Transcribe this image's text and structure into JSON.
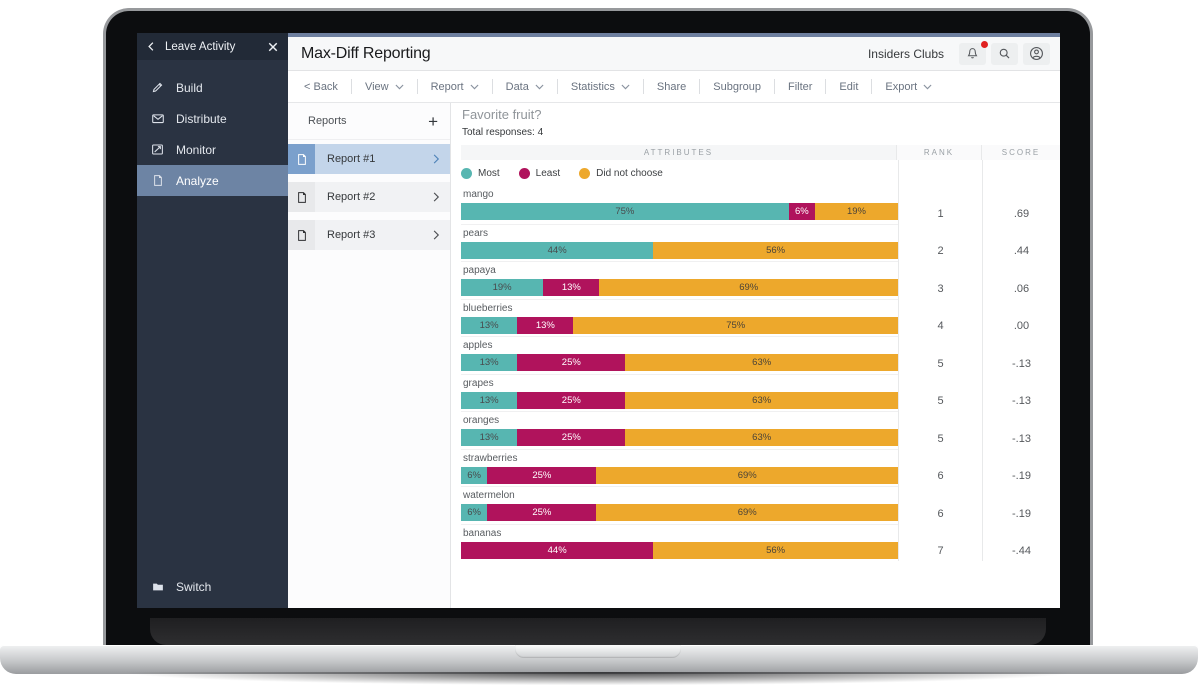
{
  "window": {
    "title": "Max-Diff Reporting",
    "account_label": "Insiders Clubs",
    "icon_buttons": [
      {
        "name": "bell-icon",
        "badge": true
      },
      {
        "name": "search-icon",
        "badge": false
      },
      {
        "name": "account-icon",
        "badge": false
      }
    ]
  },
  "sidebar": {
    "header": {
      "back_icon": "back-icon",
      "label": "Leave Activity",
      "close_icon": "close-icon"
    },
    "items": [
      {
        "label": "Build",
        "icon": "pencil-icon",
        "active": false
      },
      {
        "label": "Distribute",
        "icon": "envelope-icon",
        "active": false
      },
      {
        "label": "Monitor",
        "icon": "monitor-chart-icon",
        "active": false
      },
      {
        "label": "Analyze",
        "icon": "document-icon",
        "active": true
      }
    ],
    "footer": {
      "label": "Switch",
      "icon": "folder-icon"
    }
  },
  "toolbar": {
    "items": [
      {
        "label": "< Back",
        "dropdown": false
      },
      {
        "label": "View",
        "dropdown": true
      },
      {
        "label": "Report",
        "dropdown": true
      },
      {
        "label": "Data",
        "dropdown": true
      },
      {
        "label": "Statistics",
        "dropdown": true
      },
      {
        "label": "Share",
        "dropdown": false
      },
      {
        "label": "Subgroup",
        "dropdown": false
      },
      {
        "label": "Filter",
        "dropdown": false
      },
      {
        "label": "Edit",
        "dropdown": false
      },
      {
        "label": "Export",
        "dropdown": true
      }
    ]
  },
  "reports_panel": {
    "title": "Reports",
    "add_label": "+",
    "items": [
      {
        "label": "Report #1",
        "selected": true
      },
      {
        "label": "Report #2",
        "selected": false
      },
      {
        "label": "Report #3",
        "selected": false
      }
    ]
  },
  "report_header": {
    "question": "Favorite fruit?",
    "total_label": "Total responses: 4",
    "columns": {
      "attributes": "ATTRIBUTES",
      "rank": "RANK",
      "score": "SCORE"
    }
  },
  "chart_data": {
    "type": "bar",
    "stacked": true,
    "orientation": "horizontal",
    "title": "Favorite fruit?",
    "total_responses": 4,
    "value_format": "percent",
    "legend_position": "top",
    "legend": [
      {
        "name": "Most",
        "color": "#57b6b1"
      },
      {
        "name": "Least",
        "color": "#b0135c"
      },
      {
        "name": "Did not choose",
        "color": "#eda82c"
      }
    ],
    "categories": [
      "mango",
      "pears",
      "papaya",
      "blueberries",
      "apples",
      "grapes",
      "oranges",
      "strawberries",
      "watermelon",
      "bananas"
    ],
    "series": [
      {
        "name": "Most",
        "color": "#57b6b1",
        "text_color": "#494b4d",
        "values": [
          75,
          44,
          19,
          13,
          13,
          13,
          13,
          6,
          6,
          0
        ]
      },
      {
        "name": "Least",
        "color": "#b0135c",
        "text_color": "#ffffff",
        "values": [
          6,
          0,
          13,
          13,
          25,
          25,
          25,
          25,
          25,
          44
        ]
      },
      {
        "name": "Did not choose",
        "color": "#eda82c",
        "text_color": "#4c4438",
        "values": [
          19,
          56,
          69,
          75,
          63,
          63,
          63,
          69,
          69,
          56
        ]
      }
    ],
    "rank": [
      "1",
      "2",
      "3",
      "4",
      "5",
      "5",
      "5",
      "6",
      "6",
      "7"
    ],
    "score": [
      ".69",
      ".44",
      ".06",
      ".00",
      "-.13",
      "-.13",
      "-.13",
      "-.19",
      "-.19",
      "-.44"
    ]
  }
}
